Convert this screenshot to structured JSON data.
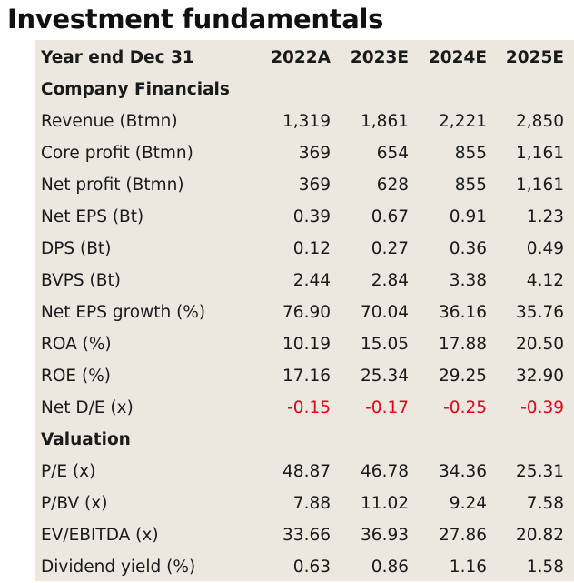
{
  "title": "Investment fundamentals",
  "colors": {
    "panel_bg": "#ece7df",
    "negative": "#e3001b"
  },
  "header": {
    "label": "Year end Dec 31",
    "years": [
      "2022A",
      "2023E",
      "2024E",
      "2025E"
    ]
  },
  "sections": [
    {
      "title": "Company Financials",
      "rows": [
        {
          "label": "Revenue (Btmn)",
          "values": [
            "1,319",
            "1,861",
            "2,221",
            "2,850"
          ]
        },
        {
          "label": "Core profit (Btmn)",
          "values": [
            "369",
            "654",
            "855",
            "1,161"
          ]
        },
        {
          "label": "Net profit (Btmn)",
          "values": [
            "369",
            "628",
            "855",
            "1,161"
          ]
        },
        {
          "label": "Net EPS (Bt)",
          "values": [
            "0.39",
            "0.67",
            "0.91",
            "1.23"
          ]
        },
        {
          "label": "DPS (Bt)",
          "values": [
            "0.12",
            "0.27",
            "0.36",
            "0.49"
          ]
        },
        {
          "label": "BVPS (Bt)",
          "values": [
            "2.44",
            "2.84",
            "3.38",
            "4.12"
          ]
        },
        {
          "label": "Net EPS growth (%)",
          "values": [
            "76.90",
            "70.04",
            "36.16",
            "35.76"
          ]
        },
        {
          "label": "ROA (%)",
          "values": [
            "10.19",
            "15.05",
            "17.88",
            "20.50"
          ]
        },
        {
          "label": "ROE (%)",
          "values": [
            "17.16",
            "25.34",
            "29.25",
            "32.90"
          ]
        },
        {
          "label": "Net D/E (x)",
          "values": [
            "-0.15",
            "-0.17",
            "-0.25",
            "-0.39"
          ],
          "negative": true
        }
      ]
    },
    {
      "title": "Valuation",
      "rows": [
        {
          "label": "P/E (x)",
          "values": [
            "48.87",
            "46.78",
            "34.36",
            "25.31"
          ]
        },
        {
          "label": "P/BV (x)",
          "values": [
            "7.88",
            "11.02",
            "9.24",
            "7.58"
          ]
        },
        {
          "label": "EV/EBITDA (x)",
          "values": [
            "33.66",
            "36.93",
            "27.86",
            "20.82"
          ]
        },
        {
          "label": "Dividend yield (%)",
          "values": [
            "0.63",
            "0.86",
            "1.16",
            "1.58"
          ]
        }
      ]
    }
  ]
}
